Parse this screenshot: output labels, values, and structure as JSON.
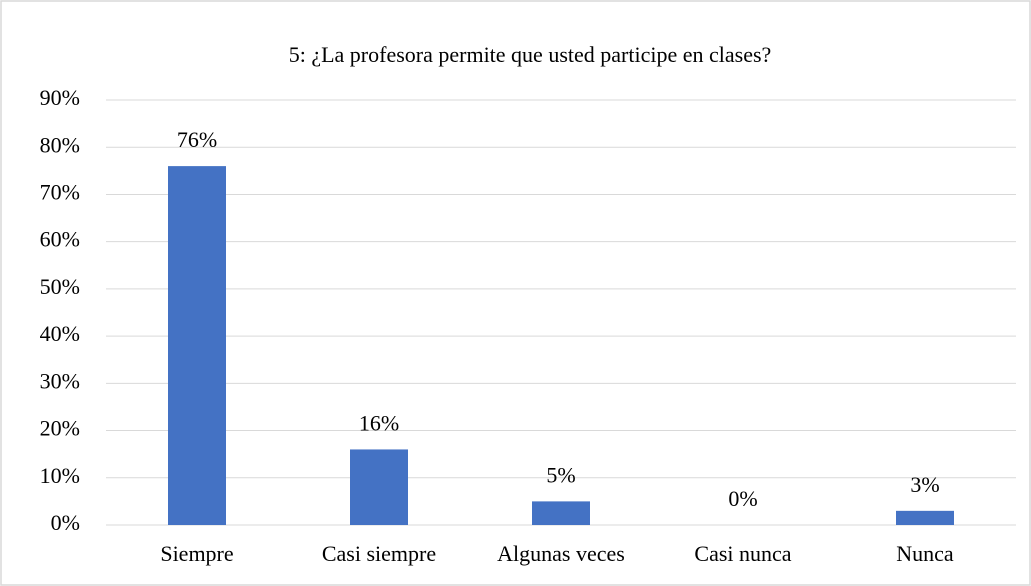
{
  "chart_data": {
    "type": "bar",
    "title": "5: ¿La profesora permite que usted participe en clases?",
    "categories": [
      "Siempre",
      "Casi siempre",
      "Algunas veces",
      "Casi nunca",
      "Nunca"
    ],
    "values": [
      76,
      16,
      5,
      0,
      3
    ],
    "value_labels": [
      "76%",
      "16%",
      "5%",
      "0%",
      "3%"
    ],
    "color": "#4472c4",
    "ylim": [
      0,
      90
    ],
    "yticks": [
      {
        "value": 0,
        "label": "0%"
      },
      {
        "value": 10,
        "label": "10%"
      },
      {
        "value": 20,
        "label": "20%"
      },
      {
        "value": 30,
        "label": "30%"
      },
      {
        "value": 40,
        "label": "40%"
      },
      {
        "value": 50,
        "label": "50%"
      },
      {
        "value": 60,
        "label": "60%"
      },
      {
        "value": 70,
        "label": "70%"
      },
      {
        "value": 80,
        "label": "80%"
      },
      {
        "value": 90,
        "label": "90%"
      }
    ],
    "grid": true
  }
}
